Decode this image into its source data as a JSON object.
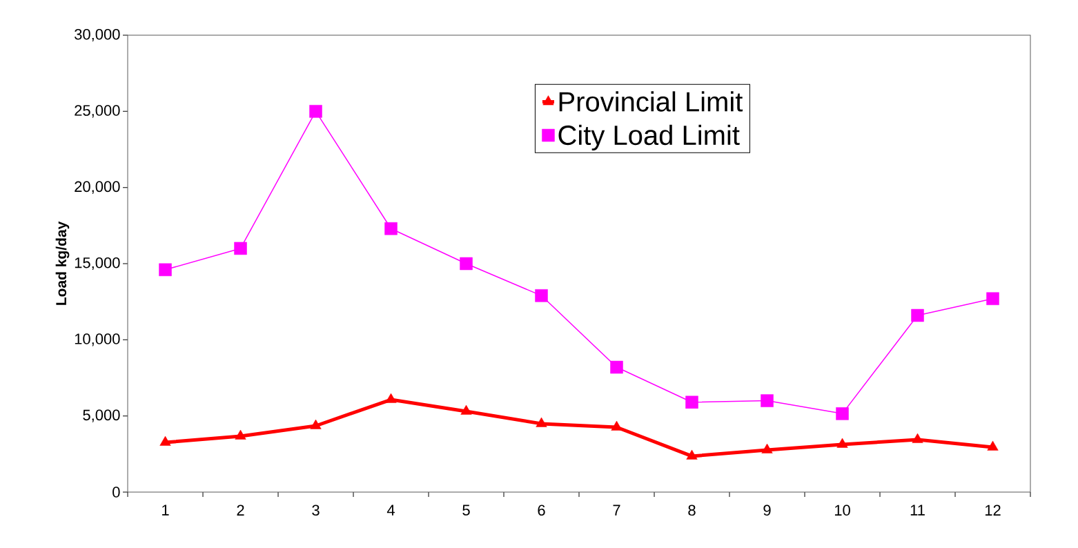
{
  "chart_data": {
    "type": "line",
    "ylabel": "Load kg/day",
    "categories": [
      "1",
      "2",
      "3",
      "4",
      "5",
      "6",
      "7",
      "8",
      "9",
      "10",
      "11",
      "12"
    ],
    "series": [
      {
        "name": "Provincial Limit",
        "color": "#ff0000",
        "marker": "triangle",
        "values": [
          3260,
          3670,
          4350,
          6070,
          5300,
          4490,
          4260,
          2360,
          2760,
          3130,
          3440,
          2950
        ]
      },
      {
        "name": "City Load Limit",
        "color": "#ff00ff",
        "marker": "square",
        "values": [
          14600,
          16000,
          25000,
          17300,
          15000,
          12900,
          8200,
          5900,
          6000,
          5150,
          11600,
          12700
        ]
      }
    ],
    "ylim": [
      0,
      30000
    ],
    "yticks": [
      {
        "value": 0,
        "label": "0"
      },
      {
        "value": 5000,
        "label": "5,000"
      },
      {
        "value": 10000,
        "label": "10,000"
      },
      {
        "value": 15000,
        "label": "15,000"
      },
      {
        "value": 20000,
        "label": "20,000"
      },
      {
        "value": 25000,
        "label": "25,000"
      },
      {
        "value": 30000,
        "label": "30,000"
      }
    ],
    "legend": "top right",
    "grid": false
  }
}
